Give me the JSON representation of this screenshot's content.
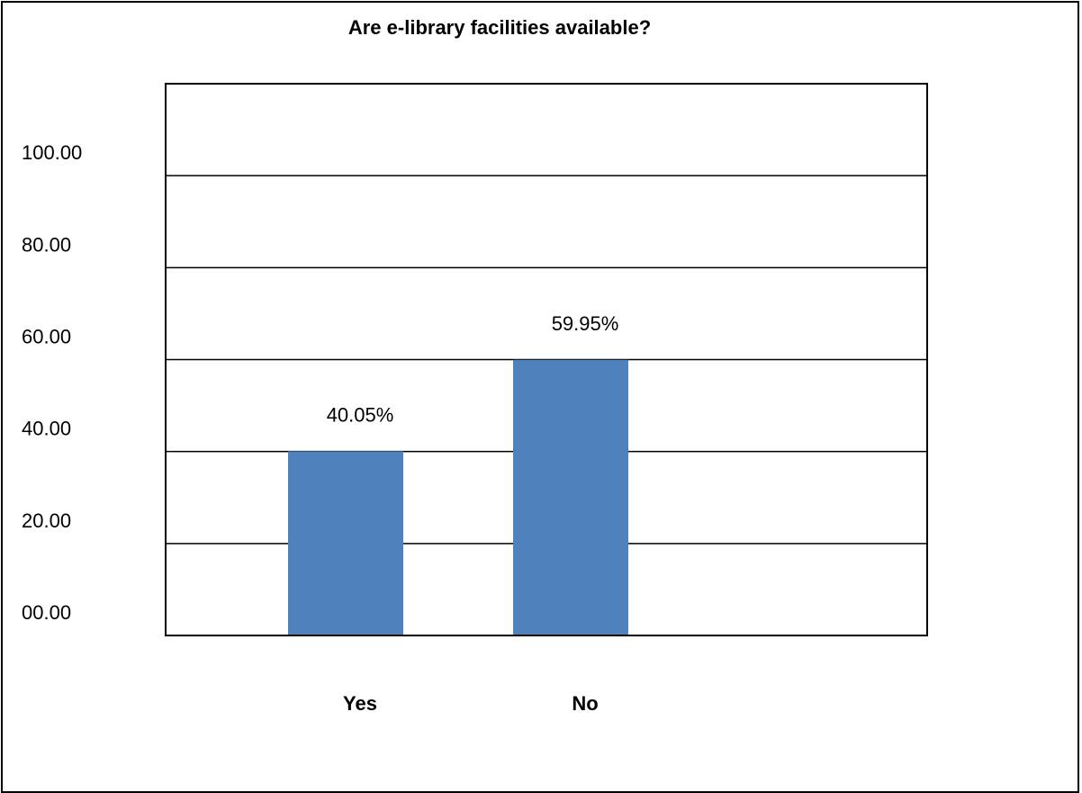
{
  "chart_data": {
    "type": "bar",
    "title": "Are e-library facilities available?",
    "xlabel": "",
    "ylabel": "",
    "categories": [
      "Yes",
      "No"
    ],
    "values": [
      40.05,
      59.95
    ],
    "data_labels": [
      "40.05%",
      "59.95%"
    ],
    "y_tick_labels": [
      "00.00",
      "20.00",
      "40.00",
      "60.00",
      "80.00",
      "100.00"
    ],
    "y_ticks": [
      0,
      20,
      40,
      60,
      80,
      100
    ],
    "ylim": [
      0,
      120
    ],
    "grid": true,
    "legend": "none",
    "bar_color": "#4F81BD"
  }
}
